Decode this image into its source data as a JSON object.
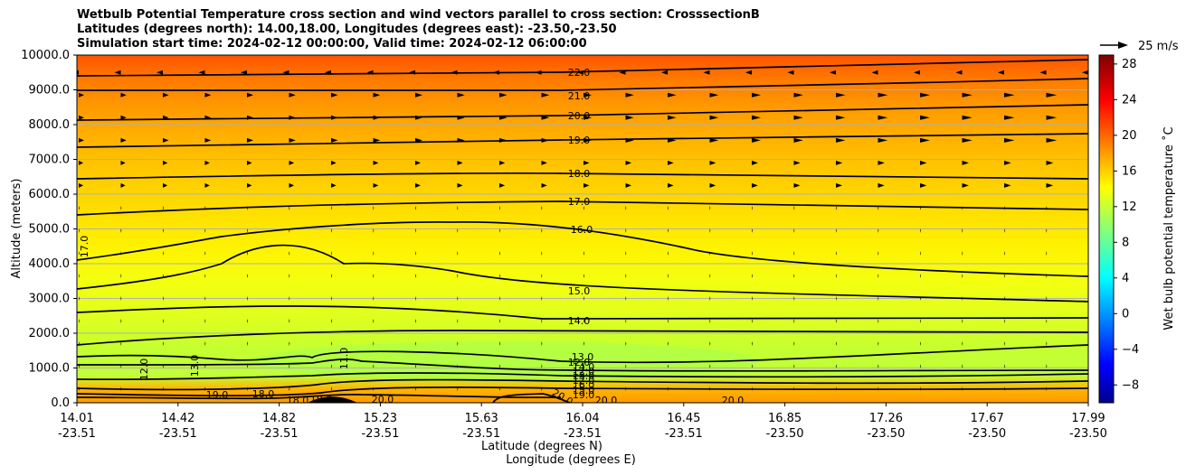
{
  "chart_data": {
    "type": "contour",
    "title_lines": [
      "Wetbulb Potential Temperature cross section and wind vectors parallel to cross section: CrosssectionB",
      "Latitudes (degrees north): 14.00,18.00, Longitudes (degrees east): -23.50,-23.50",
      "Simulation start time: 2024-02-12 00:00:00, Valid time: 2024-02-12 06:00:00"
    ],
    "ylabel": "Altitude (meters)",
    "xlabel": "Latitude (degrees N)",
    "xlabel2": "Longitude (degrees E)",
    "ylim": [
      0,
      10000
    ],
    "y_ticks": [
      "0.0",
      "1000.0",
      "2000.0",
      "3000.0",
      "4000.0",
      "5000.0",
      "6000.0",
      "7000.0",
      "8000.0",
      "9000.0",
      "10000.0"
    ],
    "x_ticks": [
      {
        "lat": "14.01",
        "lon": "-23.51"
      },
      {
        "lat": "14.42",
        "lon": "-23.51"
      },
      {
        "lat": "14.82",
        "lon": "-23.51"
      },
      {
        "lat": "15.23",
        "lon": "-23.51"
      },
      {
        "lat": "15.63",
        "lon": "-23.51"
      },
      {
        "lat": "16.04",
        "lon": "-23.51"
      },
      {
        "lat": "16.45",
        "lon": "-23.51"
      },
      {
        "lat": "16.85",
        "lon": "-23.50"
      },
      {
        "lat": "17.26",
        "lon": "-23.50"
      },
      {
        "lat": "17.67",
        "lon": "-23.50"
      },
      {
        "lat": "17.99",
        "lon": "-23.50"
      }
    ],
    "grid": "horizontal",
    "colorbar": {
      "label": "Wet bulb potential temperature $^\\circ$C",
      "label_display": "Wet bulb potential temperature ˚C",
      "ticks": [
        "−8",
        "−4",
        "0",
        "4",
        "8",
        "12",
        "16",
        "20",
        "24",
        "28"
      ],
      "range": [
        -10,
        29
      ],
      "colormap": "jet"
    },
    "quiver_key": "25 m/s",
    "contours": [
      {
        "level": 22.0,
        "altitude": 9400,
        "label": "22.0"
      },
      {
        "level": 21.0,
        "altitude": 8700,
        "label": "21.0"
      },
      {
        "level": 20.0,
        "altitude": 8150,
        "label": "20.0"
      },
      {
        "level": 19.0,
        "altitude": 7400,
        "label": "19.0"
      },
      {
        "level": 18.0,
        "altitude": 6450,
        "label": "18.0"
      },
      {
        "level": 17.0,
        "altitude": 5700,
        "label": "17.0"
      },
      {
        "level": 16.0,
        "altitude": 5050,
        "label": "16.0"
      },
      {
        "level": 15.0,
        "altitude": 3200,
        "label": "15.0"
      },
      {
        "level": 14.0,
        "altitude": 2400,
        "label": "14.0"
      },
      {
        "level": 13.0,
        "altitude": 1300,
        "label": "13.0"
      },
      {
        "level": 12.0,
        "altitude": 1200,
        "label": "12.0"
      }
    ],
    "annotations": [
      "17.0",
      "12.0",
      "13.0",
      "11.0",
      "19.0",
      "18.0",
      "18.0",
      "18.0",
      "20.0",
      "20.0",
      "20.0",
      "20.0",
      "12.0",
      "12.0",
      "16.0",
      "14.0",
      "15.0",
      "19.0",
      "13.0"
    ],
    "colors": {
      "upper": "#ff5a00",
      "mid": "#ffd200",
      "low": "#ecff14",
      "boundary": "#ffa000"
    }
  }
}
